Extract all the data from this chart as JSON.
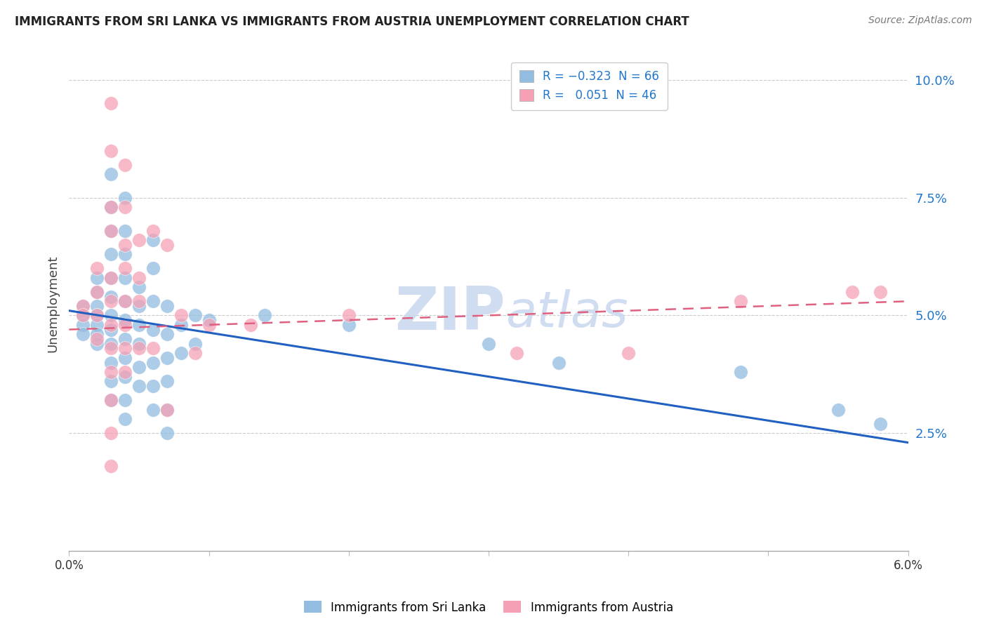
{
  "title": "IMMIGRANTS FROM SRI LANKA VS IMMIGRANTS FROM AUSTRIA UNEMPLOYMENT CORRELATION CHART",
  "source": "Source: ZipAtlas.com",
  "ylabel": "Unemployment",
  "xlim": [
    0.0,
    0.06
  ],
  "ylim": [
    0.0,
    0.105
  ],
  "yticks": [
    0.025,
    0.05,
    0.075,
    0.1
  ],
  "ytick_labels": [
    "2.5%",
    "5.0%",
    "7.5%",
    "10.0%"
  ],
  "xticks": [
    0.0,
    0.01,
    0.02,
    0.03,
    0.04,
    0.05,
    0.06
  ],
  "xtick_labels": [
    "0.0%",
    "",
    "",
    "",
    "",
    "",
    "6.0%"
  ],
  "sri_lanka_color": "#92bce0",
  "austria_color": "#f5a0b5",
  "sri_lanka_line_color": "#2060c0",
  "austria_line_color": "#e06080",
  "watermark_color": "#c8d8ef",
  "background_color": "#ffffff",
  "grid_color": "#cccccc",
  "sri_lanka_points": [
    [
      0.001,
      0.052
    ],
    [
      0.001,
      0.05
    ],
    [
      0.001,
      0.048
    ],
    [
      0.001,
      0.046
    ],
    [
      0.002,
      0.058
    ],
    [
      0.002,
      0.055
    ],
    [
      0.002,
      0.052
    ],
    [
      0.002,
      0.05
    ],
    [
      0.002,
      0.048
    ],
    [
      0.002,
      0.046
    ],
    [
      0.002,
      0.044
    ],
    [
      0.003,
      0.08
    ],
    [
      0.003,
      0.073
    ],
    [
      0.003,
      0.068
    ],
    [
      0.003,
      0.063
    ],
    [
      0.003,
      0.058
    ],
    [
      0.003,
      0.054
    ],
    [
      0.003,
      0.05
    ],
    [
      0.003,
      0.047
    ],
    [
      0.003,
      0.044
    ],
    [
      0.003,
      0.04
    ],
    [
      0.003,
      0.036
    ],
    [
      0.003,
      0.032
    ],
    [
      0.004,
      0.075
    ],
    [
      0.004,
      0.068
    ],
    [
      0.004,
      0.063
    ],
    [
      0.004,
      0.058
    ],
    [
      0.004,
      0.053
    ],
    [
      0.004,
      0.049
    ],
    [
      0.004,
      0.045
    ],
    [
      0.004,
      0.041
    ],
    [
      0.004,
      0.037
    ],
    [
      0.004,
      0.032
    ],
    [
      0.004,
      0.028
    ],
    [
      0.005,
      0.056
    ],
    [
      0.005,
      0.052
    ],
    [
      0.005,
      0.048
    ],
    [
      0.005,
      0.044
    ],
    [
      0.005,
      0.039
    ],
    [
      0.005,
      0.035
    ],
    [
      0.006,
      0.066
    ],
    [
      0.006,
      0.06
    ],
    [
      0.006,
      0.053
    ],
    [
      0.006,
      0.047
    ],
    [
      0.006,
      0.04
    ],
    [
      0.006,
      0.035
    ],
    [
      0.006,
      0.03
    ],
    [
      0.007,
      0.052
    ],
    [
      0.007,
      0.046
    ],
    [
      0.007,
      0.041
    ],
    [
      0.007,
      0.036
    ],
    [
      0.007,
      0.03
    ],
    [
      0.007,
      0.025
    ],
    [
      0.008,
      0.048
    ],
    [
      0.008,
      0.042
    ],
    [
      0.009,
      0.044
    ],
    [
      0.009,
      0.05
    ],
    [
      0.01,
      0.049
    ],
    [
      0.014,
      0.05
    ],
    [
      0.02,
      0.048
    ],
    [
      0.03,
      0.044
    ],
    [
      0.035,
      0.04
    ],
    [
      0.048,
      0.038
    ],
    [
      0.055,
      0.03
    ],
    [
      0.058,
      0.027
    ]
  ],
  "austria_points": [
    [
      0.001,
      0.052
    ],
    [
      0.001,
      0.05
    ],
    [
      0.002,
      0.06
    ],
    [
      0.002,
      0.055
    ],
    [
      0.002,
      0.05
    ],
    [
      0.002,
      0.045
    ],
    [
      0.003,
      0.095
    ],
    [
      0.003,
      0.085
    ],
    [
      0.003,
      0.073
    ],
    [
      0.003,
      0.068
    ],
    [
      0.003,
      0.058
    ],
    [
      0.003,
      0.053
    ],
    [
      0.003,
      0.048
    ],
    [
      0.003,
      0.043
    ],
    [
      0.003,
      0.038
    ],
    [
      0.003,
      0.032
    ],
    [
      0.003,
      0.025
    ],
    [
      0.003,
      0.018
    ],
    [
      0.004,
      0.082
    ],
    [
      0.004,
      0.073
    ],
    [
      0.004,
      0.065
    ],
    [
      0.004,
      0.06
    ],
    [
      0.004,
      0.053
    ],
    [
      0.004,
      0.048
    ],
    [
      0.004,
      0.043
    ],
    [
      0.004,
      0.038
    ],
    [
      0.005,
      0.066
    ],
    [
      0.005,
      0.058
    ],
    [
      0.005,
      0.053
    ],
    [
      0.005,
      0.043
    ],
    [
      0.006,
      0.068
    ],
    [
      0.006,
      0.043
    ],
    [
      0.007,
      0.065
    ],
    [
      0.007,
      0.03
    ],
    [
      0.008,
      0.05
    ],
    [
      0.009,
      0.042
    ],
    [
      0.01,
      0.048
    ],
    [
      0.013,
      0.048
    ],
    [
      0.02,
      0.05
    ],
    [
      0.032,
      0.042
    ],
    [
      0.04,
      0.042
    ],
    [
      0.048,
      0.053
    ],
    [
      0.056,
      0.055
    ],
    [
      0.058,
      0.055
    ]
  ],
  "sri_lanka_trendline": {
    "x_start": 0.0,
    "y_start": 0.051,
    "x_end": 0.06,
    "y_end": 0.023
  },
  "austria_trendline": {
    "x_start": 0.0,
    "y_start": 0.047,
    "x_end": 0.06,
    "y_end": 0.053
  }
}
